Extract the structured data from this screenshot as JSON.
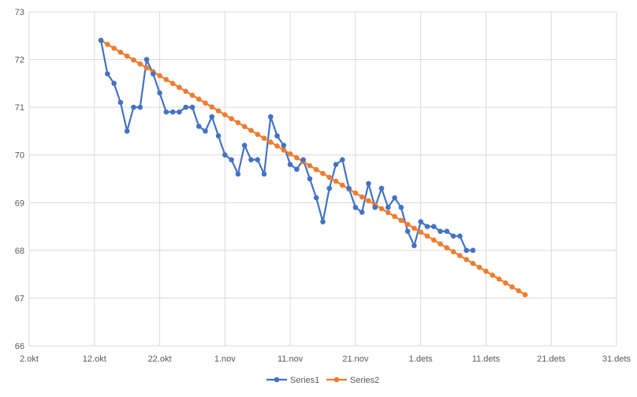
{
  "chart_data": {
    "type": "line",
    "title": "",
    "xlabel": "",
    "ylabel": "",
    "x_axis": {
      "ticks": [
        "2.okt",
        "12.okt",
        "22.okt",
        "1.nov",
        "11.nov",
        "21.nov",
        "1.dets",
        "11.dets",
        "21.dets",
        "31.dets"
      ],
      "range": [
        "2.okt",
        "31.dets"
      ]
    },
    "y_axis": {
      "ticks": [
        "66",
        "67",
        "68",
        "69",
        "70",
        "71",
        "72",
        "73"
      ],
      "range": [
        66,
        73
      ]
    },
    "grid": true,
    "legend_position": "bottom",
    "series": [
      {
        "name": "Series1",
        "color": "#4472C4",
        "x": [
          "13.okt",
          "14.okt",
          "15.okt",
          "16.okt",
          "17.okt",
          "18.okt",
          "19.okt",
          "20.okt",
          "21.okt",
          "22.okt",
          "23.okt",
          "24.okt",
          "25.okt",
          "26.okt",
          "27.okt",
          "28.okt",
          "29.okt",
          "30.okt",
          "31.okt",
          "1.nov",
          "2.nov",
          "3.nov",
          "4.nov",
          "5.nov",
          "6.nov",
          "7.nov",
          "8.nov",
          "9.nov",
          "10.nov",
          "11.nov",
          "12.nov",
          "13.nov",
          "14.nov",
          "15.nov",
          "16.nov",
          "17.nov",
          "18.nov",
          "19.nov",
          "20.nov",
          "21.nov",
          "22.nov",
          "23.nov",
          "24.nov",
          "25.nov",
          "26.nov",
          "27.nov",
          "28.nov",
          "29.nov",
          "30.nov",
          "1.dets",
          "2.dets",
          "3.dets",
          "4.dets",
          "5.dets",
          "6.dets",
          "7.dets",
          "8.dets",
          "9.dets"
        ],
        "values": [
          72.4,
          71.7,
          71.5,
          71.1,
          70.5,
          71.0,
          71.0,
          72.0,
          71.7,
          71.3,
          70.9,
          70.9,
          70.9,
          71.0,
          71.0,
          70.6,
          70.5,
          70.8,
          70.4,
          70.0,
          69.9,
          69.6,
          70.2,
          69.9,
          69.9,
          69.6,
          70.8,
          70.4,
          70.2,
          69.8,
          69.7,
          69.9,
          69.5,
          69.1,
          68.6,
          69.3,
          69.8,
          69.9,
          69.3,
          68.9,
          68.8,
          69.4,
          68.9,
          69.3,
          68.9,
          69.1,
          68.9,
          68.4,
          68.1,
          68.6,
          68.5,
          68.5,
          68.4,
          68.4,
          68.3,
          68.3,
          68.0,
          68.0
        ]
      },
      {
        "name": "Series2",
        "color": "#ED7D31",
        "x_start": "13.okt",
        "x_end": "17.dets",
        "y_start": 72.4,
        "y_end": 67.07
      }
    ]
  }
}
